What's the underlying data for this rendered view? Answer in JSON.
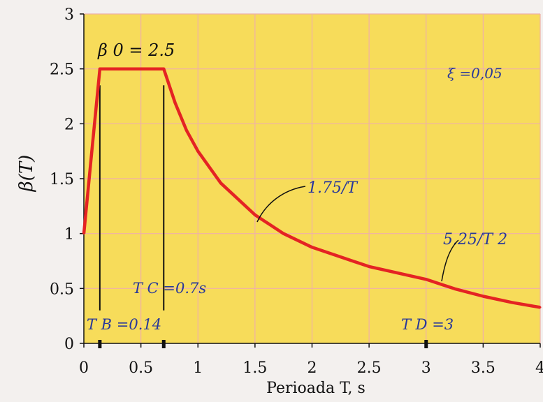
{
  "colors": {
    "plot_bg": "#f7dc5a",
    "outer_bg": "#f3f0ee",
    "grid": "#efb0a8",
    "curve": "#e42323",
    "annotation_blue": "#28389a",
    "axis": "#111111"
  },
  "chart_data": {
    "type": "line",
    "title": "",
    "xlabel": "Perioada T, s",
    "ylabel": "β(T)",
    "xlim": [
      0,
      4
    ],
    "ylim": [
      0,
      3
    ],
    "xticks": [
      "0",
      "0.5",
      "1",
      "1.5",
      "2",
      "2.5",
      "3",
      "3.5",
      "4"
    ],
    "yticks": [
      "0",
      "0.5",
      "1",
      "1.5",
      "2",
      "2.5",
      "3"
    ],
    "grid": true,
    "series": [
      {
        "name": "",
        "x": [
          0,
          0.07,
          0.14,
          0.3,
          0.5,
          0.7,
          0.8,
          0.9,
          1.0,
          1.2,
          1.5,
          1.75,
          2.0,
          2.5,
          3.0,
          3.25,
          3.5,
          3.75,
          4.0
        ],
        "y": [
          1.0,
          1.75,
          2.5,
          2.5,
          2.5,
          2.5,
          2.19,
          1.94,
          1.75,
          1.46,
          1.17,
          1.0,
          0.875,
          0.7,
          0.583,
          0.497,
          0.429,
          0.373,
          0.328
        ]
      }
    ],
    "annotations": {
      "beta0": "β 0 = 2.5",
      "xi": "ξ =0,05",
      "branch1": "1.75/T",
      "branch2": "5.25/T 2",
      "tb": "T B =0.14",
      "tc": "T C =0.7s",
      "td": "T D =3"
    }
  }
}
